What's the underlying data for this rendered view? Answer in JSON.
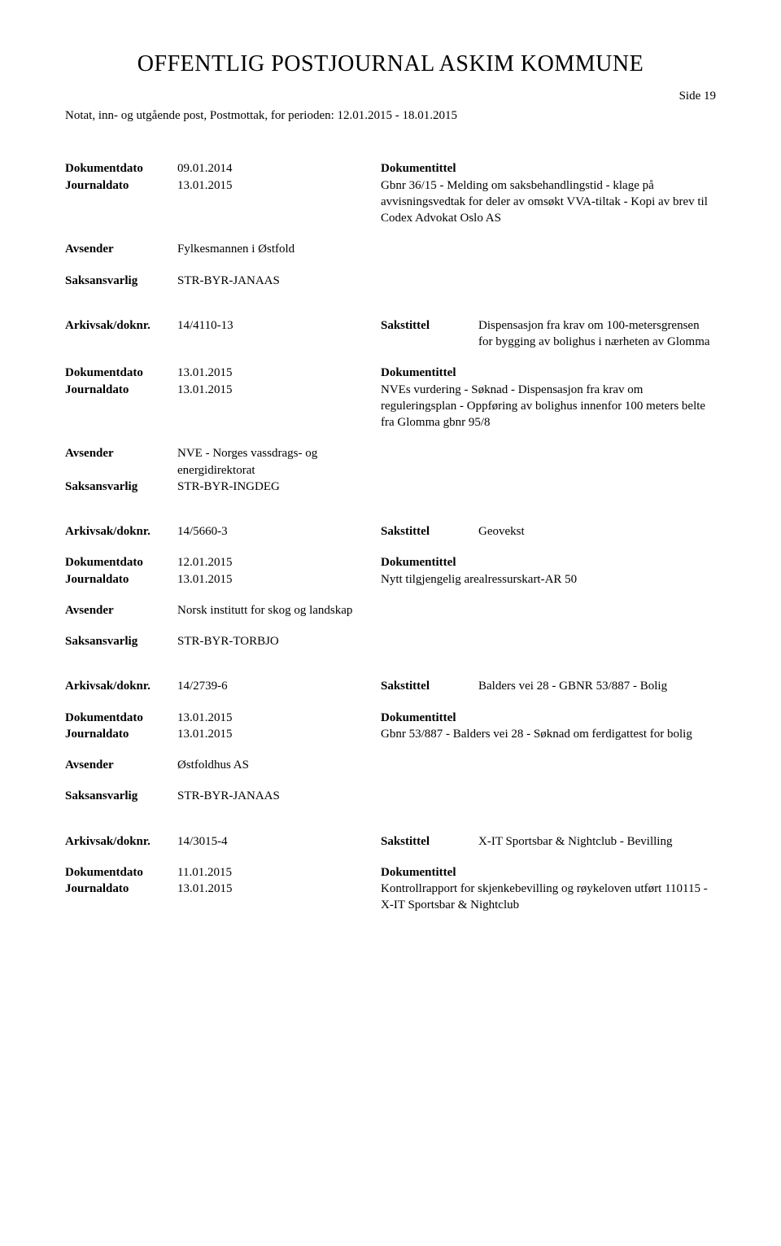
{
  "header": {
    "main_title": "OFFENTLIG POSTJOURNAL ASKIM KOMMUNE",
    "side": "Side 19",
    "subtitle": "Notat, inn- og utgående post, Postmottak, for perioden: 12.01.2015 - 18.01.2015"
  },
  "labels": {
    "dokumentdato": "Dokumentdato",
    "journaldato": "Journaldato",
    "avsender": "Avsender",
    "saksansvarlig": "Saksansvarlig",
    "arkivsak": "Arkivsak/doknr.",
    "dokumentittel": "Dokumentittel",
    "sakstittel": "Sakstittel"
  },
  "entries": [
    {
      "dokumentdato": "09.01.2014",
      "journaldato": "13.01.2015",
      "doktittel": "Gbnr 36/15 - Melding om saksbehandlingstid - klage på avvisningsvedtak for deler av omsøkt VVA-tiltak - Kopi av brev til Codex Advokat Oslo AS",
      "avsender": "Fylkesmannen i Østfold",
      "saksansvarlig": "STR-BYR-JANAAS"
    },
    {
      "arkivsak": "14/4110-13",
      "sakstittel": "Dispensasjon fra krav om 100-metersgrensen for bygging av bolighus i nærheten av Glomma",
      "dokumentdato": "13.01.2015",
      "journaldato": "13.01.2015",
      "doktittel": "NVEs vurdering - Søknad -  Dispensasjon fra krav om reguleringsplan - Oppføring av bolighus innenfor 100 meters belte fra Glomma gbnr 95/8",
      "avsender": "NVE - Norges vassdrags- og energidirektorat",
      "saksansvarlig": "STR-BYR-INGDEG"
    },
    {
      "arkivsak": "14/5660-3",
      "sakstittel": "Geovekst",
      "dokumentdato": "12.01.2015",
      "journaldato": "13.01.2015",
      "doktittel": "Nytt tilgjengelig arealressurskart-AR 50",
      "avsender": "Norsk institutt for skog og landskap",
      "saksansvarlig": "STR-BYR-TORBJO"
    },
    {
      "arkivsak": "14/2739-6",
      "sakstittel": "Balders vei 28 - GBNR 53/887 - Bolig",
      "dokumentdato": "13.01.2015",
      "journaldato": "13.01.2015",
      "doktittel": "Gbnr 53/887 - Balders vei 28 - Søknad om ferdigattest for bolig",
      "avsender": "Østfoldhus AS",
      "saksansvarlig": "STR-BYR-JANAAS"
    },
    {
      "arkivsak": "14/3015-4",
      "sakstittel": "X-IT Sportsbar & Nightclub - Bevilling",
      "dokumentdato": "11.01.2015",
      "journaldato": "13.01.2015",
      "doktittel": "Kontrollrapport for skjenkebevilling og røykeloven utført 110115 - X-IT Sportsbar & Nightclub"
    }
  ]
}
